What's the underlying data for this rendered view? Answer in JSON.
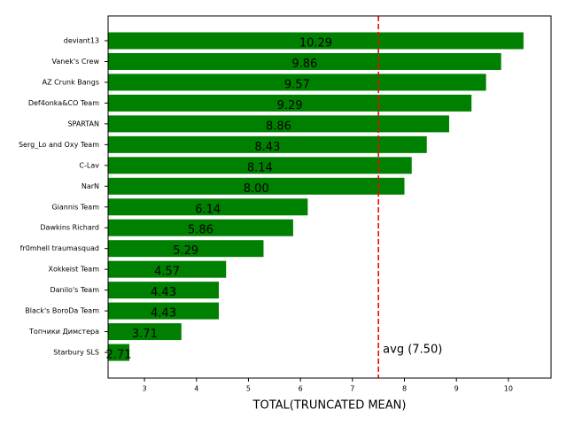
{
  "chart_data": {
    "type": "barh",
    "xlabel": "TOTAL(TRUNCATED MEAN)",
    "categories": [
      "deviant13",
      "Vanek's Crew",
      "AZ Crunk Bangs",
      "Def4onka&CO Team",
      "SPARTAN",
      "Serg_Lo and Oxy Team",
      "C-Lav",
      "NarN",
      "Giannis Team",
      "Dawkins Richard",
      "fr0mhell traumasquad",
      "Xokkeist Team",
      "Danilo's Team",
      "Black's BoroDa Team",
      "Топчики Димстера",
      "Starbury SLS"
    ],
    "values": [
      10.29,
      9.86,
      9.57,
      9.29,
      8.86,
      8.43,
      8.14,
      8.0,
      6.14,
      5.86,
      5.29,
      4.57,
      4.43,
      4.43,
      3.71,
      2.71
    ],
    "value_labels": [
      "10.29",
      "9.86",
      "9.57",
      "9.29",
      "8.86",
      "8.43",
      "8.14",
      "8.00",
      "6.14",
      "5.86",
      "5.29",
      "4.57",
      "4.43",
      "4.43",
      "3.71",
      "2.71"
    ],
    "color": "#008000",
    "xlim": [
      2.3,
      10.82
    ],
    "xticks": [
      3,
      4,
      5,
      6,
      7,
      8,
      9,
      10
    ],
    "avg_line": {
      "value": 7.5,
      "label": "avg (7.50)",
      "color": "#ff0000"
    }
  }
}
